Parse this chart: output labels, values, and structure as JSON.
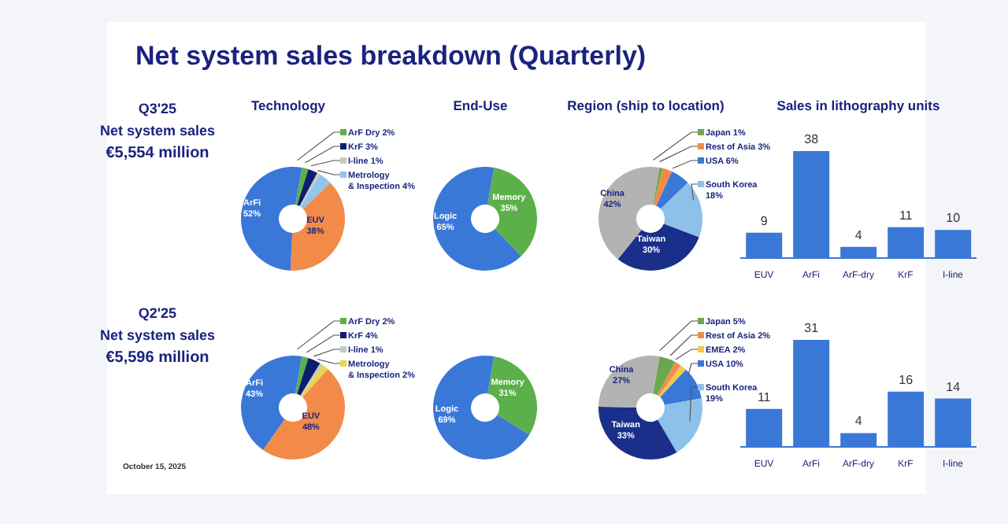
{
  "chart_data": [
    {
      "type": "other",
      "title": "Net system sales breakdown (Quarterly)",
      "annotations": [
        "Q3'25",
        "Net system sales",
        "€5,554 million"
      ]
    },
    {
      "type": "donut",
      "title": "Technology",
      "categories": [
        "ArF Dry",
        "KrF",
        "I-line",
        "Metrology & Inspection",
        "EUV",
        "ArFi"
      ],
      "values": [
        2,
        3,
        1,
        4,
        38,
        52
      ],
      "value_labels": [
        "2%",
        "3%",
        "1%",
        "4%",
        "38%",
        "52%"
      ],
      "colors": [
        "#5bb04a",
        "#0c1f6e",
        "#c8c8c8",
        "#8fc6ea",
        "#f28b4a",
        "#3a78d8"
      ],
      "legend": "top right"
    },
    {
      "type": "donut",
      "title": "End-Use",
      "categories": [
        "Memory",
        "Logic"
      ],
      "values": [
        35,
        65
      ],
      "value_labels": [
        "35%",
        "65%"
      ],
      "colors": [
        "#5bb04a",
        "#3a78d8"
      ]
    },
    {
      "type": "donut",
      "title": "Region (ship to location)",
      "categories": [
        "Japan",
        "Rest of Asia",
        "USA",
        "South Korea",
        "Taiwan",
        "China"
      ],
      "values": [
        1,
        3,
        6,
        18,
        30,
        42
      ],
      "value_labels": [
        "1%",
        "3%",
        "6%",
        "18%",
        "30%",
        "42%"
      ],
      "colors": [
        "#6aa84f",
        "#f28b4a",
        "#3a78d8",
        "#8ec1ea",
        "#1a2f8a",
        "#b3b3b3"
      ],
      "legend": "top right"
    },
    {
      "type": "bar",
      "title": "Sales in lithography units",
      "categories": [
        "EUV",
        "ArFi",
        "ArF-dry",
        "KrF",
        "I-line"
      ],
      "values": [
        9,
        38,
        4,
        11,
        10
      ],
      "color": "#3a78d8",
      "data_labels": true
    },
    {
      "type": "other",
      "annotations": [
        "Q2'25",
        "Net system sales",
        "€5,596 million",
        "October 15, 2025"
      ]
    },
    {
      "type": "donut",
      "categories": [
        "ArF Dry",
        "KrF",
        "I-line",
        "Metrology & Inspection",
        "EUV",
        "ArFi"
      ],
      "values": [
        2,
        4,
        1,
        2,
        48,
        43
      ],
      "value_labels": [
        "2%",
        "4%",
        "1%",
        "2%",
        "48%",
        "43%"
      ],
      "colors": [
        "#5bb04a",
        "#0c1f6e",
        "#c8c8c8",
        "#e8d44d",
        "#f28b4a",
        "#3a78d8"
      ],
      "legend": "top right"
    },
    {
      "type": "donut",
      "categories": [
        "Memory",
        "Logic"
      ],
      "values": [
        31,
        69
      ],
      "value_labels": [
        "31%",
        "69%"
      ],
      "colors": [
        "#5bb04a",
        "#3a78d8"
      ]
    },
    {
      "type": "donut",
      "categories": [
        "Japan",
        "Rest of Asia",
        "EMEA",
        "USA",
        "South Korea",
        "Taiwan",
        "China"
      ],
      "values": [
        5,
        2,
        2,
        10,
        19,
        33,
        27
      ],
      "value_labels": [
        "5%",
        "2%",
        "2%",
        "10%",
        "19%",
        "33%",
        "27%"
      ],
      "colors": [
        "#6aa84f",
        "#f28b4a",
        "#f2c94c",
        "#3a78d8",
        "#8ec1ea",
        "#1a2f8a",
        "#b3b3b3"
      ],
      "legend": "top right"
    },
    {
      "type": "bar",
      "categories": [
        "EUV",
        "ArFi",
        "ArF-dry",
        "KrF",
        "I-line"
      ],
      "values": [
        11,
        31,
        4,
        16,
        14
      ],
      "color": "#3a78d8",
      "data_labels": true
    }
  ]
}
